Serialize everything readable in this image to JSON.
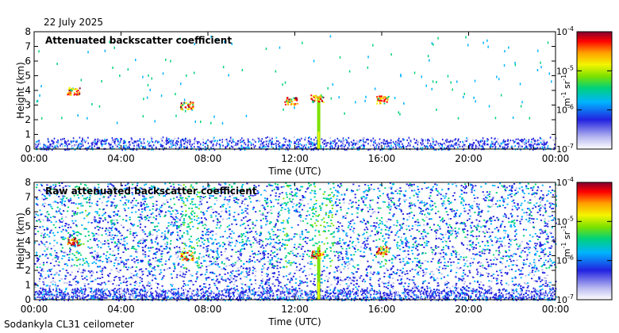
{
  "date_label": "22 July 2025",
  "footer_label": "Sodankyla CL31 ceilometer",
  "colors": {
    "scale": [
      "#ffffff",
      "#b8b8f0",
      "#2222e0",
      "#00b4ff",
      "#00d27a",
      "#7ce100",
      "#f5f500",
      "#ffa000",
      "#ff0000",
      "#800030"
    ]
  },
  "chart_data": [
    {
      "type": "heatmap",
      "title": "Attenuated backscatter coefficient",
      "xlabel": "Time (UTC)",
      "ylabel": "Height (km)",
      "xlim": [
        0,
        24
      ],
      "ylim": [
        0,
        8
      ],
      "x_tick_labels": [
        "00:00",
        "04:00",
        "08:00",
        "12:00",
        "16:00",
        "20:00",
        "00:00"
      ],
      "y_tick_labels": [
        "0",
        "1",
        "2",
        "3",
        "4",
        "5",
        "6",
        "7",
        "8"
      ],
      "colorbar": {
        "scale": "log",
        "range": [
          1e-07,
          0.0001
        ],
        "tick_bases": [
          "10",
          "10",
          "10",
          "10"
        ],
        "tick_exponents": [
          "-7",
          "-6",
          "-5",
          "-4"
        ],
        "label": "m",
        "label_exp1": "-1",
        "label_mid": " sr",
        "label_exp2": "-1"
      },
      "features": {
        "boundary_layer_top_km": 0.9,
        "precipitation_column_hour": 13.1,
        "cloud_patches": [
          {
            "x": 1.8,
            "y": 4.0
          },
          {
            "x": 7.0,
            "y": 3.0
          },
          {
            "x": 11.8,
            "y": 3.3
          },
          {
            "x": 13.0,
            "y": 3.5
          },
          {
            "x": 16.0,
            "y": 3.4
          }
        ]
      }
    },
    {
      "type": "heatmap",
      "title": "Raw attenuated backscatter coefficient",
      "xlabel": "Time (UTC)",
      "ylabel": "Height (km)",
      "xlim": [
        0,
        24
      ],
      "ylim": [
        0,
        8
      ],
      "x_tick_labels": [
        "00:00",
        "04:00",
        "08:00",
        "12:00",
        "16:00",
        "20:00",
        "00:00"
      ],
      "y_tick_labels": [
        "0",
        "1",
        "2",
        "3",
        "4",
        "5",
        "6",
        "7",
        "8"
      ],
      "colorbar": {
        "scale": "log",
        "range": [
          1e-07,
          0.0001
        ],
        "tick_bases": [
          "10",
          "10",
          "10",
          "10"
        ],
        "tick_exponents": [
          "-7",
          "-6",
          "-5",
          "-4"
        ],
        "label": "m",
        "label_exp1": "-1",
        "label_mid": " sr",
        "label_exp2": "-1"
      },
      "features": {
        "boundary_layer_top_km": 0.9,
        "precipitation_column_hour": 13.1,
        "cloud_patches": [
          {
            "x": 1.8,
            "y": 4.0
          },
          {
            "x": 7.0,
            "y": 3.0
          },
          {
            "x": 13.0,
            "y": 3.1
          },
          {
            "x": 16.0,
            "y": 3.4
          }
        ]
      }
    }
  ]
}
